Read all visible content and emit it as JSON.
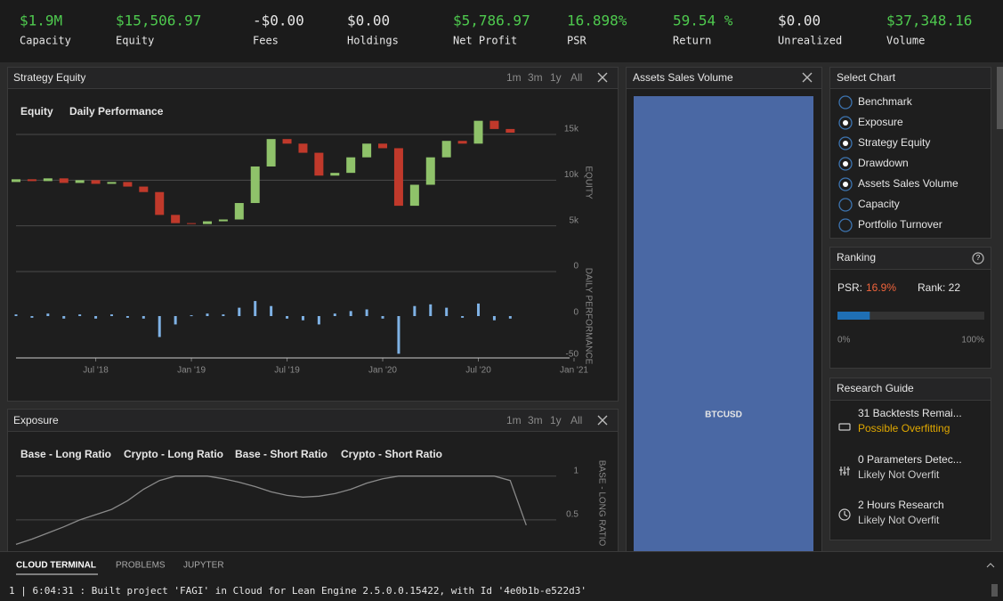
{
  "stats": [
    {
      "value": "$1.9M",
      "label": "Capacity",
      "color": "#4ec94e"
    },
    {
      "value": "$15,506.97",
      "label": "Equity",
      "color": "#4ec94e"
    },
    {
      "value": "-$0.00",
      "label": "Fees",
      "color": "#e6e6e6"
    },
    {
      "value": "$0.00",
      "label": "Holdings",
      "color": "#e6e6e6"
    },
    {
      "value": "$5,786.97",
      "label": "Net Profit",
      "color": "#4ec94e"
    },
    {
      "value": "16.898%",
      "label": "PSR",
      "color": "#4ec94e"
    },
    {
      "value": "59.54 %",
      "label": "Return",
      "color": "#4ec94e"
    },
    {
      "value": "$0.00",
      "label": "Unrealized",
      "color": "#e6e6e6"
    },
    {
      "value": "$37,348.16",
      "label": "Volume",
      "color": "#4ec94e"
    }
  ],
  "equity_panel": {
    "title": "Strategy Equity",
    "ranges": [
      "1m",
      "3m",
      "1y",
      "All"
    ]
  },
  "exposure_panel": {
    "title": "Exposure",
    "ranges": [
      "1m",
      "3m",
      "1y",
      "All"
    ]
  },
  "assets_panel": {
    "title": "Assets Sales Volume"
  },
  "chart_data": [
    {
      "type": "candlestick",
      "name": "Equity",
      "ylabel": "EQUITY",
      "x": [
        "2018-02",
        "2018-03",
        "2018-04",
        "2018-05",
        "2018-06",
        "2018-07",
        "2018-08",
        "2018-09",
        "2018-10",
        "2018-11",
        "2018-12",
        "2019-01",
        "2019-02",
        "2019-03",
        "2019-04",
        "2019-05",
        "2019-06",
        "2019-07",
        "2019-08",
        "2019-09",
        "2019-10",
        "2019-11",
        "2019-12",
        "2020-01",
        "2020-02",
        "2020-03",
        "2020-04",
        "2020-05",
        "2020-06",
        "2020-07",
        "2020-08",
        "2020-09"
      ],
      "open": [
        9800,
        10100,
        9900,
        10200,
        9700,
        10000,
        9600,
        9800,
        9300,
        8700,
        6200,
        5300,
        5200,
        5500,
        5700,
        7500,
        11500,
        14500,
        14000,
        13000,
        10500,
        10800,
        12500,
        14000,
        13500,
        7200,
        9500,
        12500,
        14300,
        14000,
        16500,
        15600
      ],
      "close": [
        10100,
        9900,
        10200,
        9700,
        10000,
        9600,
        9800,
        9300,
        8700,
        6200,
        5300,
        5200,
        5500,
        5700,
        7500,
        11500,
        14500,
        14000,
        13000,
        10500,
        10800,
        12500,
        14000,
        13500,
        7200,
        9500,
        12500,
        14300,
        14000,
        16500,
        15600,
        15200
      ],
      "up_color": "#8fc26a",
      "down_color": "#c0392b",
      "ylim": [
        0,
        19000
      ],
      "yticks": [
        0,
        {
          "value": 5000,
          "label": "5k"
        },
        {
          "value": 10000,
          "label": "10k"
        },
        {
          "value": 15000,
          "label": "15k"
        }
      ],
      "xlim": [
        "2018-02",
        "2021-01"
      ],
      "xticks": [
        {
          "value": "2018-07",
          "label": "Jul '18"
        },
        {
          "value": "2019-01",
          "label": "Jan '19"
        },
        {
          "value": "2019-07",
          "label": "Jul '19"
        },
        {
          "value": "2020-01",
          "label": "Jan '20"
        },
        {
          "value": "2020-07",
          "label": "Jul '20"
        },
        {
          "value": "2021-01",
          "label": "Jan '21"
        }
      ],
      "grid": true
    },
    {
      "type": "bar",
      "name": "Daily Performance",
      "ylabel": "DAILY PERFORMANCE",
      "x": [
        "2018-02",
        "2018-03",
        "2018-04",
        "2018-05",
        "2018-06",
        "2018-07",
        "2018-08",
        "2018-09",
        "2018-10",
        "2018-11",
        "2018-12",
        "2019-01",
        "2019-02",
        "2019-03",
        "2019-04",
        "2019-05",
        "2019-06",
        "2019-07",
        "2019-08",
        "2019-09",
        "2019-10",
        "2019-11",
        "2019-12",
        "2020-01",
        "2020-02",
        "2020-03",
        "2020-04",
        "2020-05",
        "2020-06",
        "2020-07",
        "2020-08",
        "2020-09"
      ],
      "values": [
        2,
        -2,
        3,
        -3,
        2,
        -3,
        2,
        -2,
        -3,
        -25,
        -10,
        1,
        3,
        2,
        10,
        18,
        12,
        -3,
        -5,
        -10,
        3,
        6,
        8,
        -3,
        -45,
        12,
        14,
        10,
        -2,
        15,
        -5,
        -3
      ],
      "color": "#7fb2e5",
      "ylim": [
        -50,
        50
      ],
      "yticks": [
        -50,
        0
      ],
      "xlim": [
        "2018-02",
        "2021-01"
      ]
    },
    {
      "type": "line",
      "ylabel": "BASE - LONG RATIO",
      "legend": [
        "Base - Long Ratio",
        "Crypto - Long Ratio",
        "Base - Short Ratio",
        "Crypto - Short Ratio"
      ],
      "x": [
        "2018-02",
        "2018-03",
        "2018-04",
        "2018-05",
        "2018-06",
        "2018-07",
        "2018-08",
        "2018-09",
        "2018-10",
        "2018-11",
        "2018-12",
        "2019-01",
        "2019-02",
        "2019-03",
        "2019-04",
        "2019-05",
        "2019-06",
        "2019-07",
        "2019-08",
        "2019-09",
        "2019-10",
        "2019-11",
        "2019-12",
        "2020-01",
        "2020-02",
        "2020-03",
        "2020-04",
        "2020-05",
        "2020-06",
        "2020-07",
        "2020-08",
        "2020-09",
        "2020-10"
      ],
      "series": [
        {
          "name": "Base - Long Ratio",
          "color": "#8a8a8a",
          "values": [
            0.22,
            0.28,
            0.35,
            0.42,
            0.5,
            0.56,
            0.62,
            0.72,
            0.85,
            0.95,
            1,
            1,
            1,
            0.97,
            0.93,
            0.88,
            0.82,
            0.78,
            0.76,
            0.77,
            0.8,
            0.85,
            0.92,
            0.97,
            1,
            1,
            1,
            1,
            1,
            1,
            1,
            0.95,
            0.44
          ]
        }
      ],
      "ylim": [
        0,
        1.15
      ],
      "yticks": [
        {
          "value": 0.5,
          "label": "0.5"
        },
        1
      ],
      "xlim": [
        "2018-02",
        "2021-01"
      ]
    },
    {
      "type": "bar",
      "categories": [
        "BTCUSD"
      ],
      "values": [
        37348.16
      ],
      "color": "#4a68a4"
    }
  ],
  "select_chart": {
    "title": "Select Chart",
    "options": [
      {
        "label": "Benchmark",
        "checked": false
      },
      {
        "label": "Exposure",
        "checked": true
      },
      {
        "label": "Strategy Equity",
        "checked": true
      },
      {
        "label": "Drawdown",
        "checked": true
      },
      {
        "label": "Assets Sales Volume",
        "checked": true
      },
      {
        "label": "Capacity",
        "checked": false
      },
      {
        "label": "Portfolio Turnover",
        "checked": false
      }
    ]
  },
  "ranking": {
    "title": "Ranking",
    "psr_label": "PSR:",
    "psr_value": "16.9%",
    "rank": "Rank: 22",
    "progress": 22,
    "progress_range": [
      0,
      100
    ],
    "min_label": "0%",
    "max_label": "100%"
  },
  "research_guide": {
    "title": "Research Guide",
    "items": [
      {
        "title": "31 Backtests Remai...",
        "status": "Possible Overfitting",
        "status_color": "#e0a800"
      },
      {
        "title": "0 Parameters Detec...",
        "status": "Likely Not Overfit",
        "status_color": "#cccccc"
      },
      {
        "title": "2 Hours Research",
        "status": "Likely Not Overfit",
        "status_color": "#cccccc"
      }
    ]
  },
  "terminal": {
    "tabs": [
      "CLOUD TERMINAL",
      "PROBLEMS",
      "JUPYTER"
    ],
    "lines": [
      "1 | 6:04:31 : Built project 'FAGI' in Cloud for Lean Engine 2.5.0.0.15422, with Id '4e0b1b-e522d3'"
    ]
  }
}
